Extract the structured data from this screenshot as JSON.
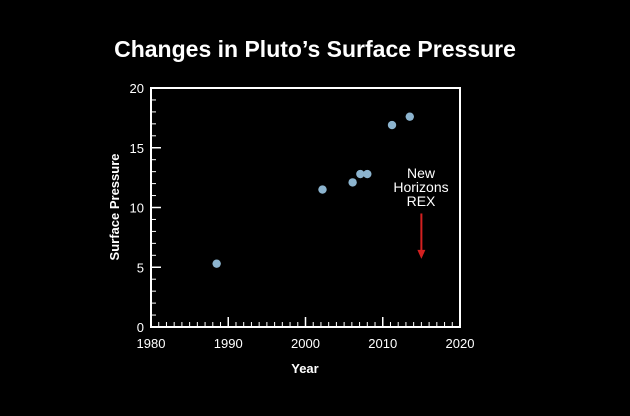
{
  "chart_data": {
    "type": "scatter",
    "title": "Changes in Pluto’s Surface Pressure",
    "xlabel": "Year",
    "ylabel": "Surface Pressure",
    "xlim": [
      1980,
      2020
    ],
    "ylim": [
      0,
      20
    ],
    "x_ticks": [
      "1980",
      "1990",
      "2000",
      "2010",
      "2020"
    ],
    "y_ticks": [
      "0",
      "5",
      "10",
      "15",
      "20"
    ],
    "x_minor_step": 1,
    "y_minor_step": 1,
    "grid": false,
    "series": [
      {
        "color": "#8cb4cf",
        "points": [
          {
            "x": 1988.5,
            "y": 5.3
          },
          {
            "x": 2002.2,
            "y": 11.5
          },
          {
            "x": 2006.1,
            "y": 12.1
          },
          {
            "x": 2007.1,
            "y": 12.8
          },
          {
            "x": 2008.0,
            "y": 12.8
          },
          {
            "x": 2011.2,
            "y": 16.9
          },
          {
            "x": 2013.5,
            "y": 17.6
          }
        ]
      }
    ],
    "annotation": {
      "lines": [
        "New",
        "Horizons",
        "REX"
      ],
      "arrow_x": 2015,
      "arrow_y_from": 9.5,
      "arrow_y_to": 5.7,
      "arrow_color": "#d32020"
    },
    "colors": {
      "background": "#000000",
      "axes": "#ffffff",
      "text": "#ffffff"
    }
  }
}
